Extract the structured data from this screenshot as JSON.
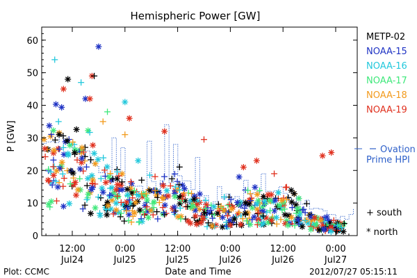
{
  "chart_data": {
    "type": "scatter",
    "title": "Hemispheric Power [GW]",
    "ylabel": "P [GW]",
    "xlabel": "Date and Time",
    "ylim": [
      0,
      64
    ],
    "yticks": [
      0,
      10,
      20,
      30,
      40,
      50,
      60
    ],
    "xlim_hours": [
      -7,
      6
    ],
    "xticks": [
      {
        "h": -12,
        "time": "12:00",
        "date": "Jul24"
      },
      {
        "h": 0,
        "time": "0:00",
        "date": "Jul25"
      },
      {
        "h": 12,
        "time": "12:00",
        "date": "Jul25"
      },
      {
        "h": 24,
        "time": "0:00",
        "date": "Jul26"
      },
      {
        "h": 36,
        "time": "12:00",
        "date": "Jul26"
      },
      {
        "h": 48,
        "time": "0:00",
        "date": "Jul27"
      }
    ],
    "legend_position": "right",
    "grid": false,
    "series": [
      {
        "name": "METP-02",
        "color": "#000000"
      },
      {
        "name": "NOAA-15",
        "color": "#1f33c4"
      },
      {
        "name": "NOAA-16",
        "color": "#22c8dc"
      },
      {
        "name": "NOAA-17",
        "color": "#3ee87a"
      },
      {
        "name": "NOAA-18",
        "color": "#f29a1c"
      },
      {
        "name": "NOAA-19",
        "color": "#e0301e"
      }
    ],
    "ovation_series": {
      "name_line1": "Ovation",
      "name_line2": "Prime HPI",
      "color": "#2d5fc9"
    },
    "symbol_legend": [
      {
        "symbol": "+",
        "label": "south"
      },
      {
        "symbol": "*",
        "label": "north"
      }
    ]
  },
  "footer": {
    "plot_credit": "Plot: CCMC",
    "timestamp": "2012/07/27 05:15:11"
  }
}
